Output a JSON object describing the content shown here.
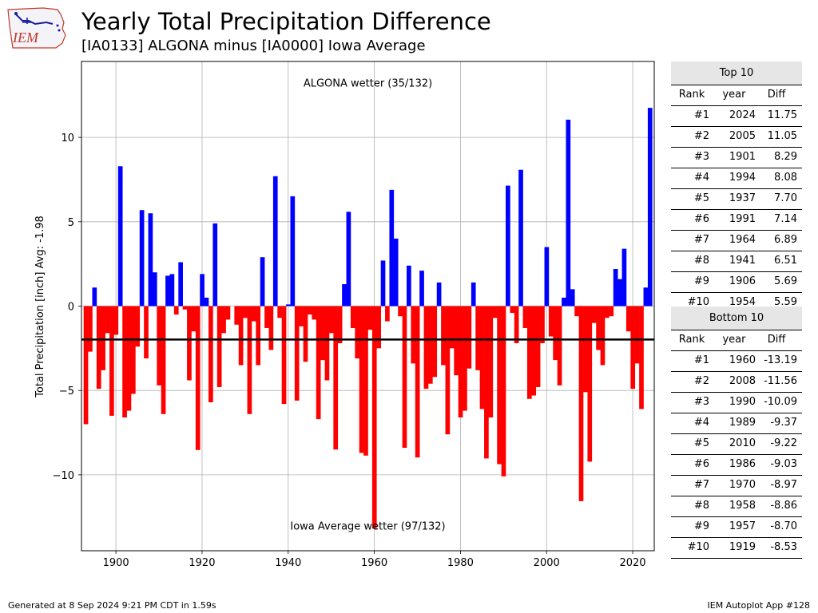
{
  "logo_text": "IEM",
  "title": "Yearly Total Precipitation Difference",
  "subtitle": "[IA0133] ALGONA minus [IA0000] Iowa Average",
  "colors": {
    "positive": "#0000ff",
    "negative": "#ff0000",
    "average_line": "#000000",
    "grid": "#b0b0b0"
  },
  "chart_data": {
    "type": "bar",
    "ylabel": "Total Precipitation [inch] Avg: -1.98",
    "xlim": [
      1892,
      2025
    ],
    "ylim": [
      -14.5,
      14.5
    ],
    "x_ticks": [
      1900,
      1920,
      1940,
      1960,
      1980,
      2000,
      2020
    ],
    "y_ticks": [
      10,
      5,
      0,
      -5,
      -10
    ],
    "y_tick_labels": [
      "10",
      "5",
      "0",
      "−5",
      "−10"
    ],
    "grid": true,
    "average": -1.98,
    "annotation_top": "ALGONA wetter (35/132)",
    "annotation_bottom": "Iowa Average wetter (97/132)",
    "x": [
      1893,
      1894,
      1895,
      1896,
      1897,
      1898,
      1899,
      1900,
      1901,
      1902,
      1903,
      1904,
      1905,
      1906,
      1907,
      1908,
      1909,
      1910,
      1911,
      1912,
      1913,
      1914,
      1915,
      1916,
      1917,
      1918,
      1919,
      1920,
      1921,
      1922,
      1923,
      1924,
      1925,
      1926,
      1927,
      1928,
      1929,
      1930,
      1931,
      1932,
      1933,
      1934,
      1935,
      1936,
      1937,
      1938,
      1939,
      1940,
      1941,
      1942,
      1943,
      1944,
      1945,
      1946,
      1947,
      1948,
      1949,
      1950,
      1951,
      1952,
      1953,
      1954,
      1955,
      1956,
      1957,
      1958,
      1959,
      1960,
      1961,
      1962,
      1963,
      1964,
      1965,
      1966,
      1967,
      1968,
      1969,
      1970,
      1971,
      1972,
      1973,
      1974,
      1975,
      1976,
      1977,
      1978,
      1979,
      1980,
      1981,
      1982,
      1983,
      1984,
      1985,
      1986,
      1987,
      1988,
      1989,
      1990,
      1991,
      1992,
      1993,
      1994,
      1995,
      1996,
      1997,
      1998,
      1999,
      2000,
      2001,
      2002,
      2003,
      2004,
      2005,
      2006,
      2007,
      2008,
      2009,
      2010,
      2011,
      2012,
      2013,
      2014,
      2015,
      2016,
      2017,
      2018,
      2019,
      2020,
      2021,
      2022,
      2023,
      2024
    ],
    "values": [
      -7.0,
      -2.7,
      1.1,
      -4.9,
      -3.8,
      -1.6,
      -6.5,
      -1.7,
      8.29,
      -6.6,
      -6.2,
      -5.2,
      -2.4,
      5.69,
      -3.1,
      5.5,
      2.0,
      -4.7,
      -6.4,
      1.8,
      1.9,
      -0.5,
      2.6,
      -0.2,
      -4.4,
      -1.5,
      -8.53,
      1.9,
      0.5,
      -5.7,
      4.9,
      -4.8,
      -1.6,
      -0.8,
      0.0,
      -1.1,
      -3.5,
      -0.7,
      -6.4,
      -0.9,
      -3.5,
      2.9,
      -1.3,
      -2.6,
      7.7,
      -0.7,
      -5.8,
      0.1,
      6.51,
      -5.6,
      -1.2,
      -3.3,
      -0.5,
      -0.8,
      -6.7,
      -3.2,
      -4.4,
      -1.6,
      -8.5,
      -2.2,
      1.3,
      5.59,
      -1.3,
      -3.1,
      -8.7,
      -8.86,
      -1.4,
      -13.19,
      -2.5,
      2.7,
      -0.9,
      6.89,
      4.0,
      -0.6,
      -8.4,
      2.4,
      -3.4,
      -8.97,
      2.1,
      -4.9,
      -4.6,
      -4.2,
      1.4,
      -3.5,
      -7.6,
      -2.5,
      -4.1,
      -6.6,
      -6.2,
      -3.7,
      1.4,
      -3.8,
      -6.1,
      -9.03,
      -6.6,
      -0.7,
      -9.37,
      -10.09,
      7.14,
      -0.4,
      -2.2,
      8.08,
      -1.3,
      -5.5,
      -5.3,
      -4.8,
      -2.2,
      3.5,
      -1.8,
      -3.2,
      -4.7,
      0.5,
      11.05,
      1.0,
      -0.6,
      -11.56,
      -5.1,
      -9.22,
      -1.0,
      -2.6,
      -3.5,
      -0.7,
      -0.6,
      2.2,
      1.6,
      3.4,
      -1.5,
      -4.9,
      -3.4,
      -6.1,
      1.1,
      11.75
    ]
  },
  "top10": {
    "title": "Top 10",
    "headers": [
      "Rank",
      "year",
      "Diff"
    ],
    "rows": [
      [
        "#1",
        "2024",
        "11.75"
      ],
      [
        "#2",
        "2005",
        "11.05"
      ],
      [
        "#3",
        "1901",
        "8.29"
      ],
      [
        "#4",
        "1994",
        "8.08"
      ],
      [
        "#5",
        "1937",
        "7.70"
      ],
      [
        "#6",
        "1991",
        "7.14"
      ],
      [
        "#7",
        "1964",
        "6.89"
      ],
      [
        "#8",
        "1941",
        "6.51"
      ],
      [
        "#9",
        "1906",
        "5.69"
      ],
      [
        "#10",
        "1954",
        "5.59"
      ]
    ]
  },
  "bottom10": {
    "title": "Bottom 10",
    "headers": [
      "Rank",
      "year",
      "Diff"
    ],
    "rows": [
      [
        "#1",
        "1960",
        "-13.19"
      ],
      [
        "#2",
        "2008",
        "-11.56"
      ],
      [
        "#3",
        "1990",
        "-10.09"
      ],
      [
        "#4",
        "1989",
        "-9.37"
      ],
      [
        "#5",
        "2010",
        "-9.22"
      ],
      [
        "#6",
        "1986",
        "-9.03"
      ],
      [
        "#7",
        "1970",
        "-8.97"
      ],
      [
        "#8",
        "1958",
        "-8.86"
      ],
      [
        "#9",
        "1957",
        "-8.70"
      ],
      [
        "#10",
        "1919",
        "-8.53"
      ]
    ]
  },
  "footer": {
    "left": "Generated at 8 Sep 2024 9:21 PM CDT in 1.59s",
    "right": "IEM Autoplot App #128"
  }
}
